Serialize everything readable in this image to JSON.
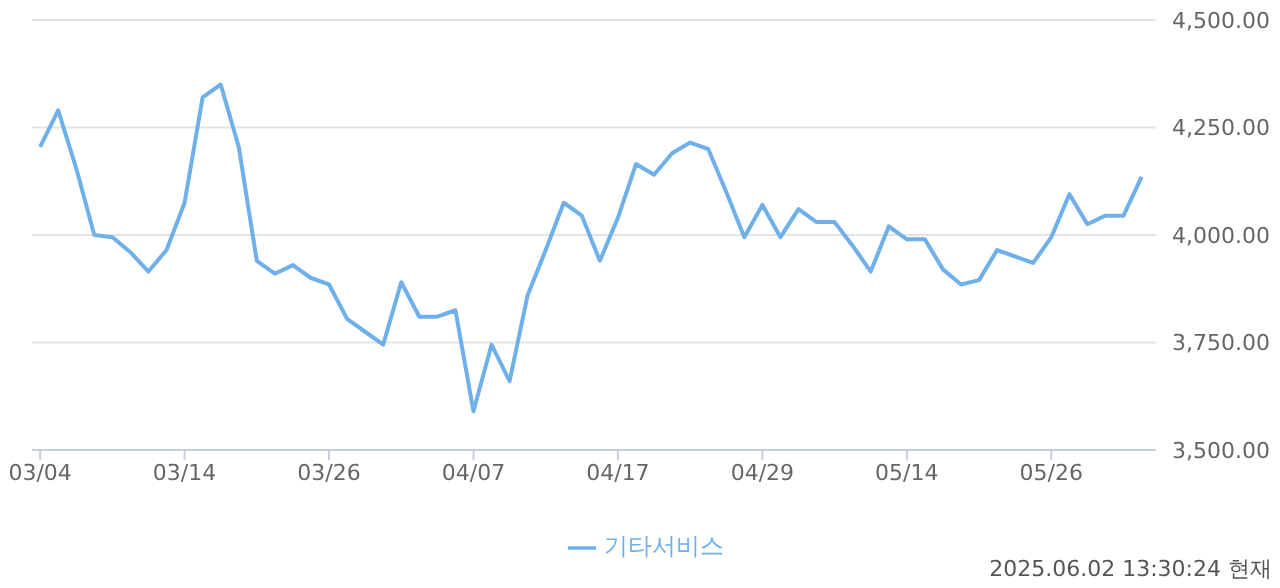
{
  "chart_data": {
    "type": "line",
    "categories": [
      "03/04",
      null,
      null,
      null,
      null,
      null,
      null,
      null,
      "03/14",
      null,
      null,
      null,
      null,
      null,
      null,
      null,
      "03/26",
      null,
      null,
      null,
      null,
      null,
      null,
      null,
      "04/07",
      null,
      null,
      null,
      null,
      null,
      null,
      null,
      "04/17",
      null,
      null,
      null,
      null,
      null,
      null,
      null,
      "04/29",
      null,
      null,
      null,
      null,
      null,
      null,
      null,
      "05/14",
      null,
      null,
      null,
      null,
      null,
      null,
      null,
      "05/26",
      null,
      null,
      null,
      null,
      null
    ],
    "series": [
      {
        "name": "기타서비스",
        "color": "#6fb0ea",
        "values": [
          4205,
          4290,
          4155,
          4000,
          3995,
          3960,
          3915,
          3965,
          4075,
          4320,
          4350,
          4205,
          3940,
          3910,
          3930,
          3900,
          3885,
          3805,
          3775,
          3745,
          3890,
          3810,
          3810,
          3825,
          3590,
          3745,
          3660,
          3860,
          3965,
          4075,
          4045,
          3940,
          4040,
          4165,
          4140,
          4190,
          4215,
          4200,
          4100,
          3995,
          4070,
          3995,
          4060,
          4030,
          4030,
          3975,
          3915,
          4020,
          3990,
          3990,
          3920,
          3885,
          3895,
          3965,
          3950,
          3935,
          3995,
          4095,
          4025,
          4045,
          4045,
          4135
        ]
      }
    ],
    "ylim": [
      3500,
      4500
    ],
    "yticks": [
      {
        "value": 3500,
        "label": "3,500.00"
      },
      {
        "value": 3750,
        "label": "3,750.00"
      },
      {
        "value": 4000,
        "label": "4,000.00"
      },
      {
        "value": 4250,
        "label": "4,250.00"
      },
      {
        "value": 4500,
        "label": "4,500.00"
      }
    ],
    "grid": "y",
    "legend": "bottom",
    "marker": "none",
    "line_style": "solid",
    "annotations": [
      "2025.06.02 13:30:24 현재"
    ]
  }
}
